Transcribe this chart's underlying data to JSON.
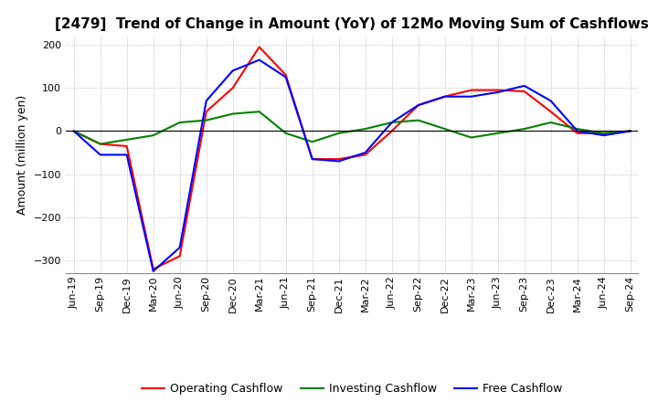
{
  "title": "[2479]  Trend of Change in Amount (YoY) of 12Mo Moving Sum of Cashflows",
  "ylabel": "Amount (million yen)",
  "ylim": [
    -330,
    220
  ],
  "yticks": [
    -300,
    -200,
    -100,
    0,
    100,
    200
  ],
  "x_labels": [
    "Jun-19",
    "Sep-19",
    "Dec-19",
    "Mar-20",
    "Jun-20",
    "Sep-20",
    "Dec-20",
    "Mar-21",
    "Jun-21",
    "Sep-21",
    "Dec-21",
    "Mar-22",
    "Jun-22",
    "Sep-22",
    "Dec-22",
    "Mar-23",
    "Jun-23",
    "Sep-23",
    "Dec-23",
    "Mar-24",
    "Jun-24",
    "Sep-24"
  ],
  "operating": [
    0,
    -30,
    -35,
    -320,
    -290,
    45,
    100,
    195,
    130,
    -65,
    -65,
    -55,
    0,
    60,
    80,
    95,
    95,
    92,
    45,
    -5,
    -5,
    0
  ],
  "investing": [
    0,
    -30,
    -20,
    -10,
    20,
    25,
    40,
    45,
    -5,
    -25,
    -5,
    5,
    20,
    25,
    5,
    -15,
    -5,
    5,
    20,
    5,
    -5,
    0
  ],
  "free": [
    0,
    -55,
    -55,
    -325,
    -270,
    70,
    140,
    165,
    125,
    -65,
    -70,
    -50,
    20,
    60,
    80,
    80,
    90,
    105,
    70,
    0,
    -10,
    0
  ],
  "op_color": "#ff0000",
  "inv_color": "#008000",
  "free_color": "#0000ff",
  "bg_color": "#ffffff",
  "grid_color": "#aaaaaa",
  "title_fontsize": 11,
  "axis_fontsize": 9,
  "tick_fontsize": 8,
  "legend_fontsize": 9
}
